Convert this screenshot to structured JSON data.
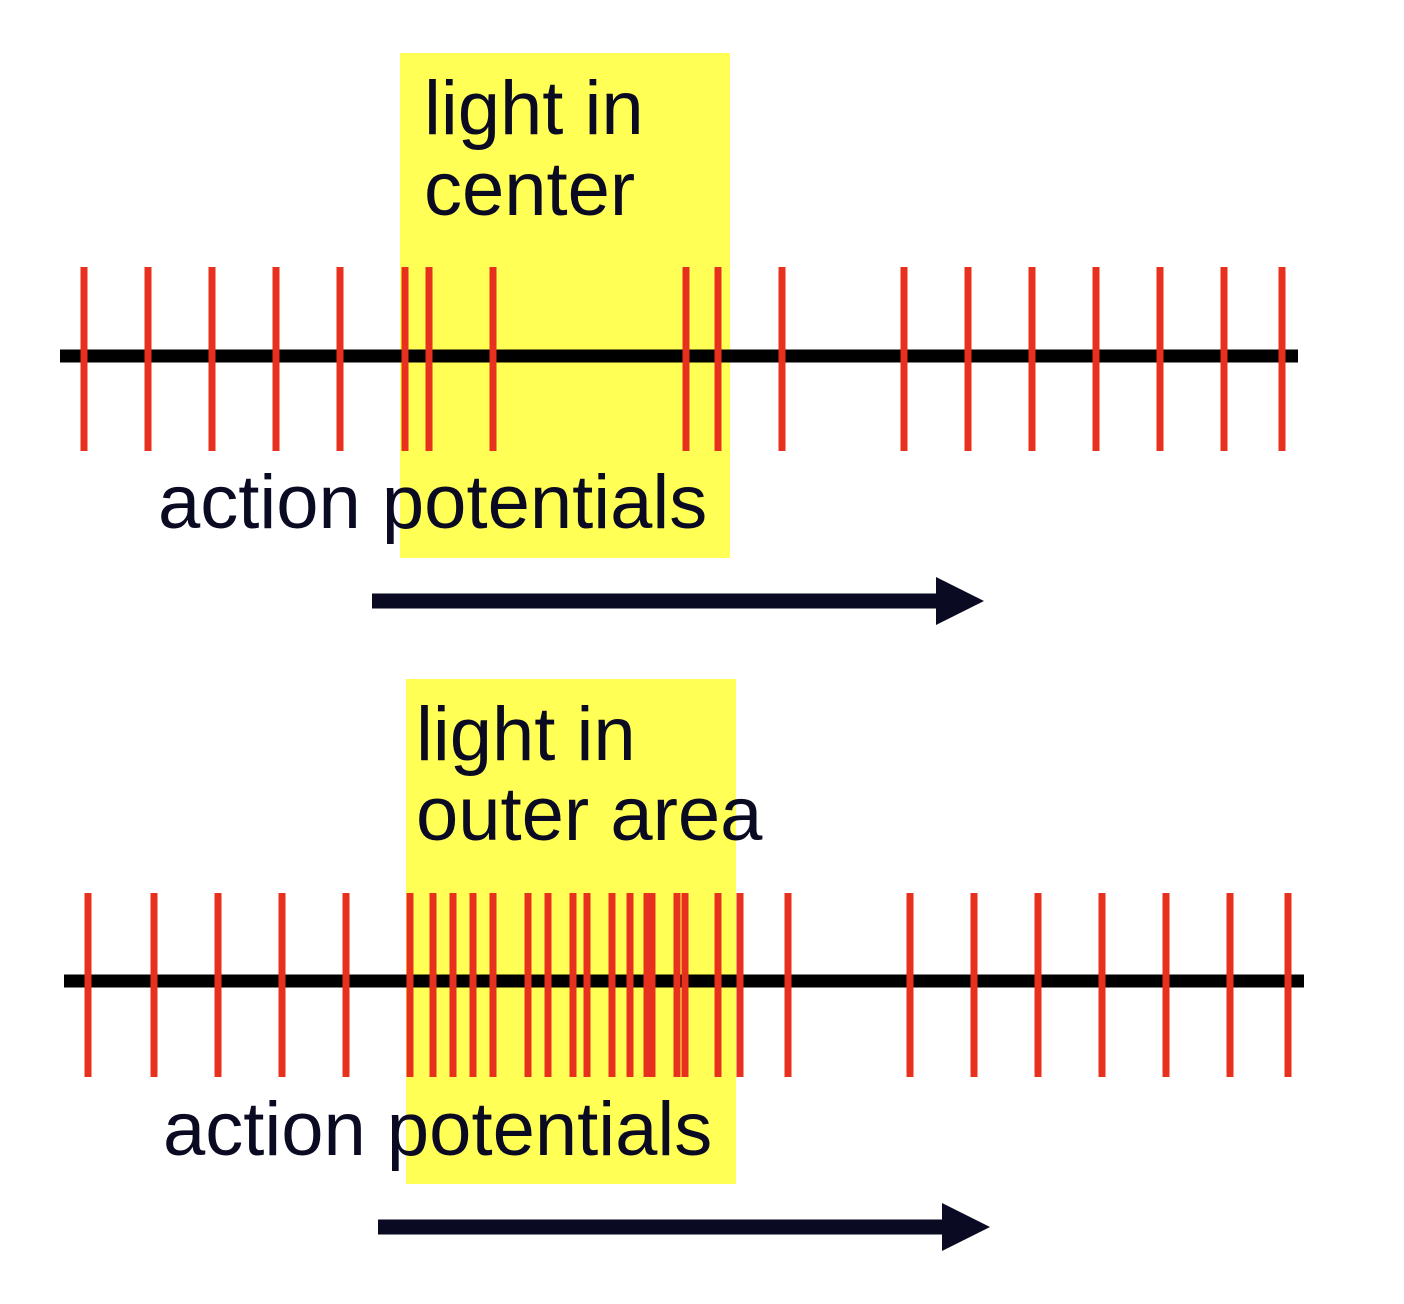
{
  "colors": {
    "background": "#ffffff",
    "highlight": "#ffff55",
    "spike": "#e8301f",
    "axis": "#000000",
    "text": "#0a0a23",
    "arrow": "#0a0a23"
  },
  "panels": [
    {
      "label_line1": "light in",
      "label_line2": "center",
      "caption": "action potentials",
      "spike_count": 19
    },
    {
      "label_line1": "light in",
      "label_line2": "outer area",
      "caption": "action potentials",
      "spike_count": 29
    }
  ]
}
